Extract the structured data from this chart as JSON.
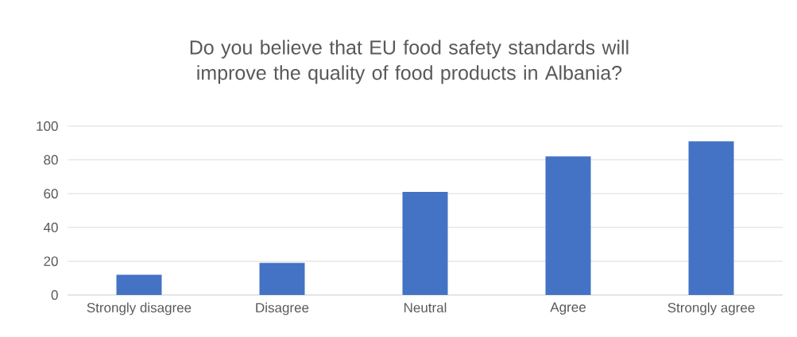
{
  "chart_data": {
    "type": "bar",
    "title": "Do you believe that EU food safety standards will improve the quality of food products in Albania?",
    "categories": [
      "Strongly disagree",
      "Disagree",
      "Neutral",
      "Agree",
      "Strongly agree"
    ],
    "values": [
      12,
      19,
      61,
      82,
      91
    ],
    "color": "#4472c4",
    "ylim": [
      0,
      100
    ],
    "yticks": [
      0,
      20,
      40,
      60,
      80,
      100
    ],
    "grid": "y"
  }
}
